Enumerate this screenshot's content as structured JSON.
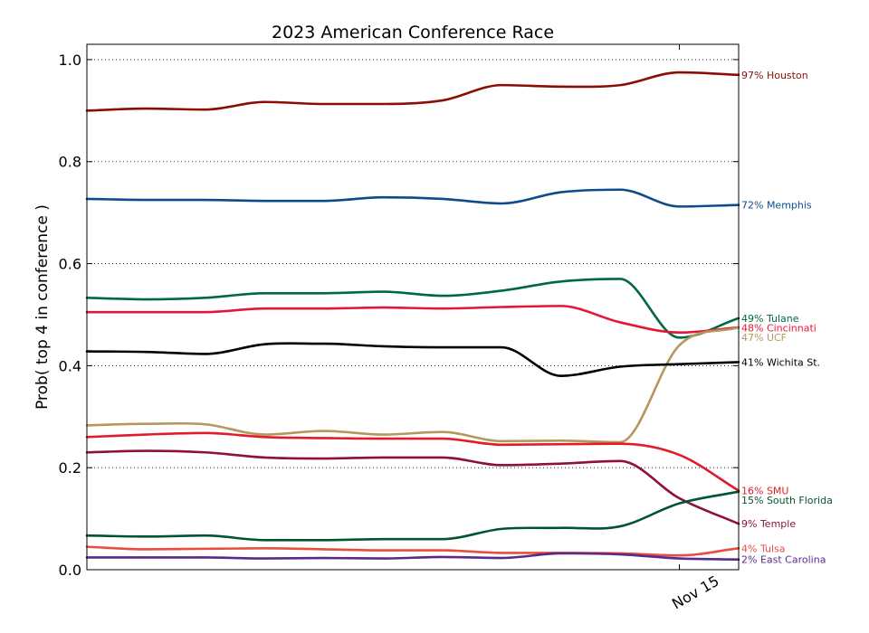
{
  "chart_data": {
    "type": "line",
    "title": "2023 American Conference Race",
    "xlabel": "",
    "ylabel": "Prob( top 4 in conference )",
    "ylim": [
      0.0,
      1.03
    ],
    "yticks": [
      0.0,
      0.2,
      0.4,
      0.6,
      0.8,
      1.0
    ],
    "ytick_labels": [
      "0.0",
      "0.2",
      "0.4",
      "0.6",
      "0.8",
      "1.0"
    ],
    "xticks": [
      10
    ],
    "xtick_labels": [
      "Nov 15"
    ],
    "grid": "horizontal dotted",
    "x": [
      0,
      1,
      2,
      3,
      4,
      5,
      6,
      7,
      8,
      9,
      10,
      11
    ],
    "series": [
      {
        "name": "Houston",
        "end_label": "97% Houston",
        "color": "#8b0e04",
        "values": [
          0.9,
          0.904,
          0.902,
          0.917,
          0.913,
          0.913,
          0.92,
          0.95,
          0.947,
          0.95,
          0.975,
          0.97
        ]
      },
      {
        "name": "Memphis",
        "end_label": "72% Memphis",
        "color": "#0d4c8c",
        "values": [
          0.727,
          0.725,
          0.725,
          0.723,
          0.723,
          0.73,
          0.727,
          0.718,
          0.74,
          0.745,
          0.712,
          0.715
        ]
      },
      {
        "name": "Tulane",
        "end_label": "49% Tulane",
        "color": "#006940",
        "values": [
          0.533,
          0.53,
          0.533,
          0.542,
          0.542,
          0.545,
          0.537,
          0.547,
          0.565,
          0.57,
          0.455,
          0.493
        ]
      },
      {
        "name": "Cincinnati",
        "end_label": "48% Cincinnati",
        "color": "#e31837",
        "values": [
          0.505,
          0.505,
          0.505,
          0.512,
          0.512,
          0.514,
          0.512,
          0.515,
          0.517,
          0.485,
          0.465,
          0.475
        ]
      },
      {
        "name": "UCF",
        "end_label": "47% UCF",
        "color": "#b5975b",
        "values": [
          0.283,
          0.286,
          0.285,
          0.265,
          0.272,
          0.265,
          0.27,
          0.252,
          0.253,
          0.25,
          0.44,
          0.475
        ]
      },
      {
        "name": "Wichita St.",
        "end_label": "41% Wichita St.",
        "color": "#000000",
        "values": [
          0.428,
          0.427,
          0.423,
          0.442,
          0.443,
          0.438,
          0.436,
          0.436,
          0.38,
          0.398,
          0.403,
          0.407
        ]
      },
      {
        "name": "SMU",
        "end_label": "16% SMU",
        "color": "#e21b2b",
        "values": [
          0.26,
          0.265,
          0.268,
          0.26,
          0.258,
          0.257,
          0.257,
          0.245,
          0.246,
          0.247,
          0.225,
          0.155
        ]
      },
      {
        "name": "Temple",
        "end_label": "9% Temple",
        "color": "#8e1238",
        "values": [
          0.23,
          0.233,
          0.23,
          0.22,
          0.218,
          0.22,
          0.22,
          0.205,
          0.208,
          0.213,
          0.14,
          0.09
        ]
      },
      {
        "name": "South Florida",
        "end_label": "15% South Florida",
        "color": "#005432",
        "values": [
          0.067,
          0.065,
          0.067,
          0.058,
          0.058,
          0.06,
          0.06,
          0.08,
          0.082,
          0.085,
          0.13,
          0.153
        ]
      },
      {
        "name": "Tulsa",
        "end_label": "4% Tulsa",
        "color": "#e84e3f",
        "values": [
          0.045,
          0.04,
          0.041,
          0.042,
          0.04,
          0.038,
          0.038,
          0.033,
          0.033,
          0.032,
          0.028,
          0.042
        ]
      },
      {
        "name": "East Carolina",
        "end_label": "2% East Carolina",
        "color": "#592a8a",
        "values": [
          0.024,
          0.024,
          0.024,
          0.022,
          0.023,
          0.022,
          0.025,
          0.023,
          0.032,
          0.03,
          0.022,
          0.02
        ]
      }
    ]
  }
}
